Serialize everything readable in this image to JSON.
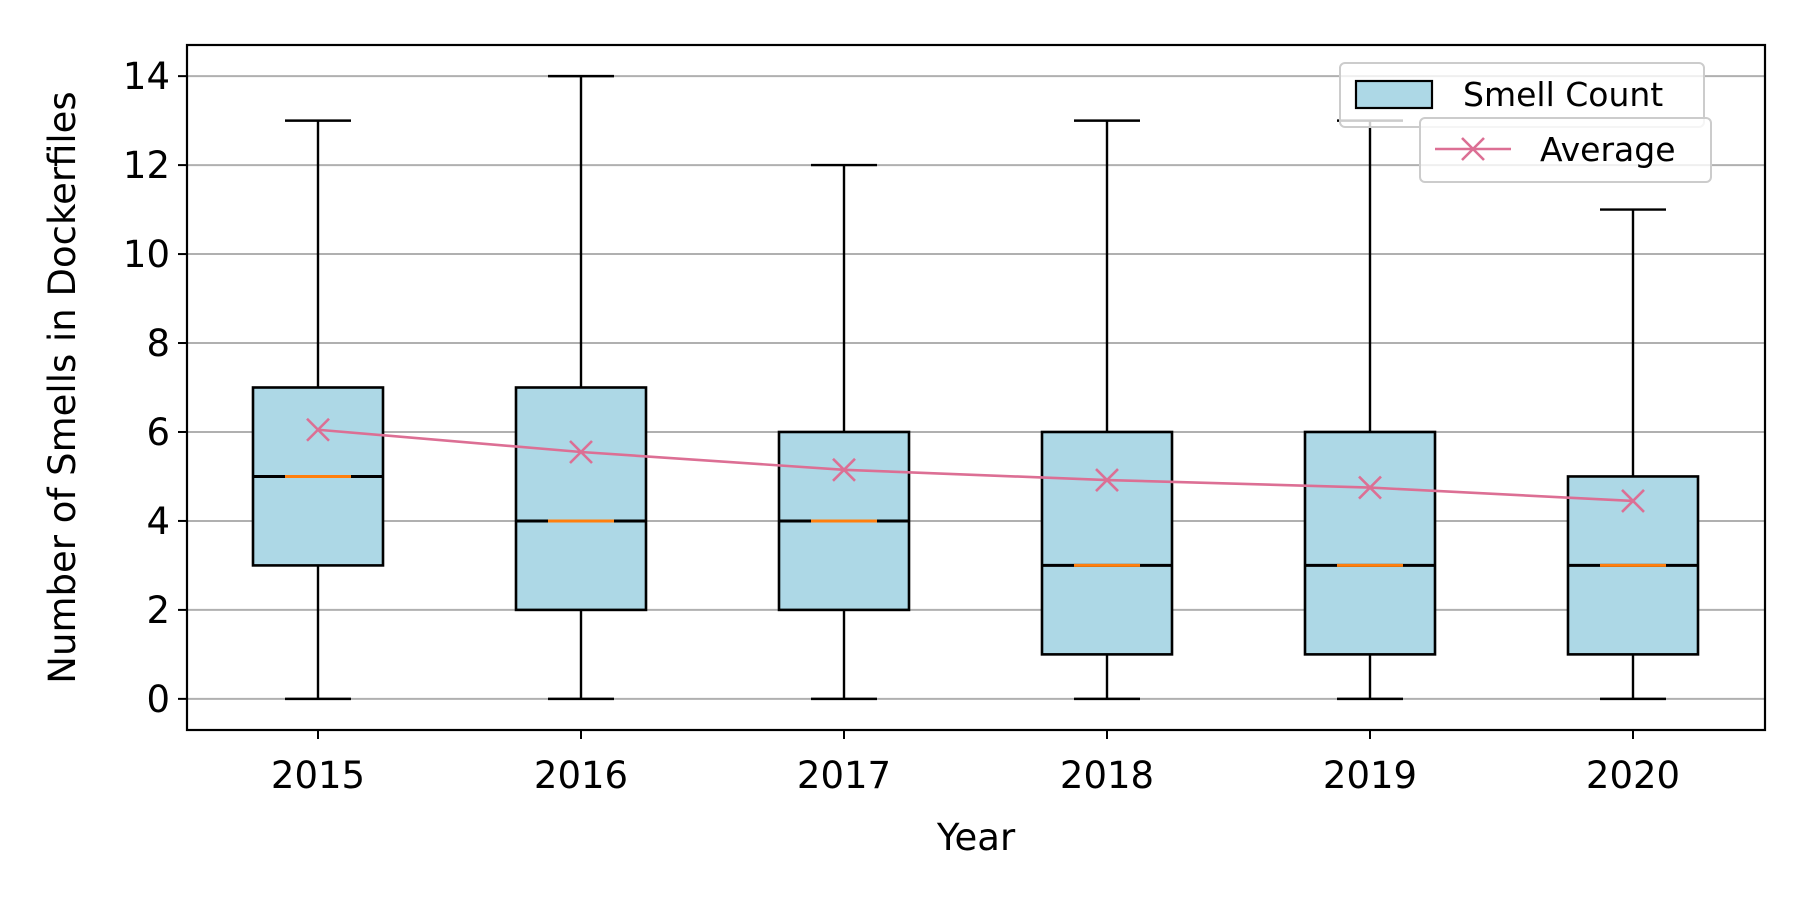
{
  "chart_data": {
    "type": "box",
    "xlabel": "Year",
    "ylabel": "Number of Smells in Dockerfiles",
    "categories": [
      "2015",
      "2016",
      "2017",
      "2018",
      "2019",
      "2020"
    ],
    "boxes": [
      {
        "category": "2015",
        "min": 0,
        "q1": 3,
        "median": 5,
        "q3": 7,
        "max": 13
      },
      {
        "category": "2016",
        "min": 0,
        "q1": 2,
        "median": 4,
        "q3": 7,
        "max": 14
      },
      {
        "category": "2017",
        "min": 0,
        "q1": 2,
        "median": 4,
        "q3": 6,
        "max": 12
      },
      {
        "category": "2018",
        "min": 0,
        "q1": 1,
        "median": 3,
        "q3": 6,
        "max": 13
      },
      {
        "category": "2019",
        "min": 0,
        "q1": 1,
        "median": 3,
        "q3": 6,
        "max": 13
      },
      {
        "category": "2020",
        "min": 0,
        "q1": 1,
        "median": 3,
        "q3": 5,
        "max": 11
      }
    ],
    "average": [
      6.05,
      5.55,
      5.15,
      4.92,
      4.75,
      4.45
    ],
    "ylim": [
      -0.7,
      14.7
    ],
    "yticks": [
      "0",
      "2",
      "4",
      "6",
      "8",
      "10",
      "12",
      "14"
    ],
    "grid": "horizontal",
    "legend": {
      "placement": "top-right",
      "entries": [
        "Smell Count",
        "Average"
      ]
    },
    "colors": {
      "box_fill": "#add8e6",
      "box_edge": "#000000",
      "median": "#ff7f0e",
      "average": "#dc6f94",
      "grid": "#b0b0b0"
    }
  }
}
